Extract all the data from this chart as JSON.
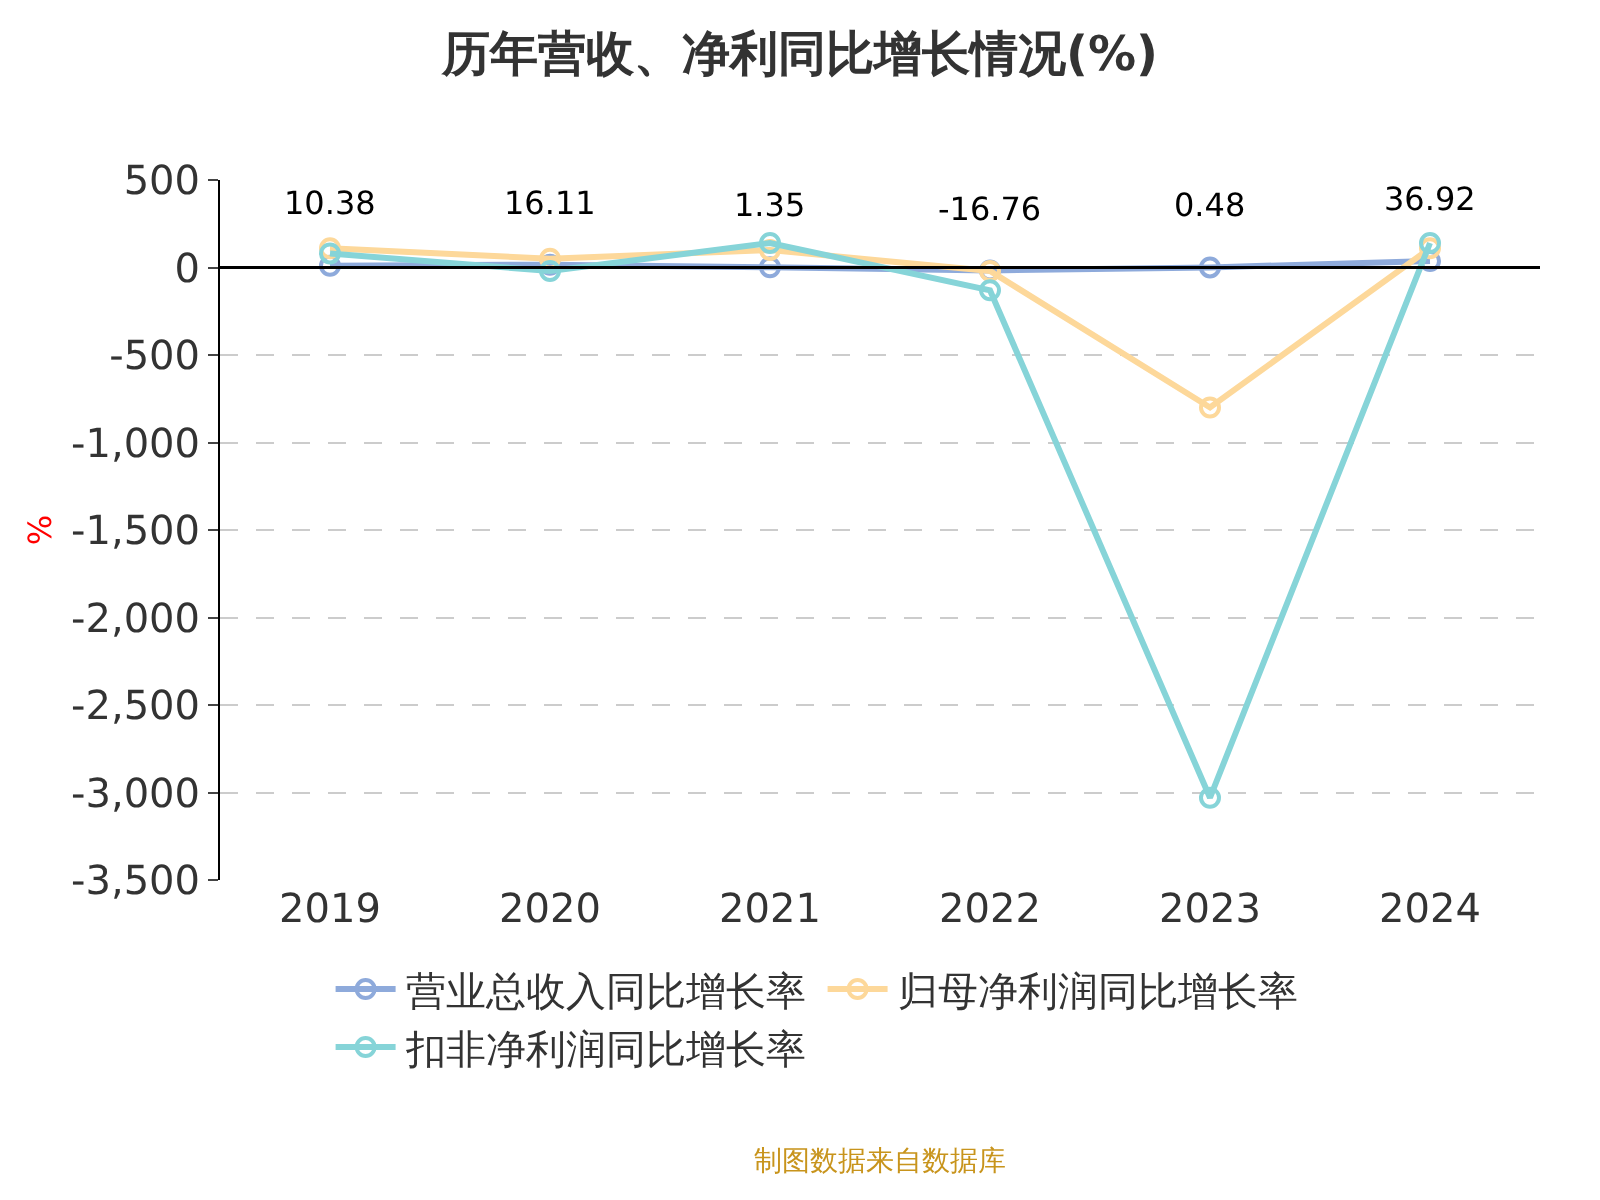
{
  "chart_data": {
    "type": "line",
    "title": "历年营收、净利同比增长情况(%)",
    "ylabel": "%",
    "categories": [
      "2019",
      "2020",
      "2021",
      "2022",
      "2023",
      "2024"
    ],
    "series": [
      {
        "name": "营业总收入同比增长率",
        "color": "#8eaadb",
        "values": [
          10.38,
          16.11,
          1.35,
          -16.76,
          0.48,
          36.92
        ],
        "value_labels": [
          "10.38",
          "16.11",
          "1.35",
          "-16.76",
          "0.48",
          "36.92"
        ]
      },
      {
        "name": "归母净利润同比增长率",
        "color": "#fdd89a",
        "values": [
          110,
          50,
          100,
          -20,
          -800,
          110
        ]
      },
      {
        "name": "扣非净利润同比增长率",
        "color": "#86d4d8",
        "values": [
          80,
          -20,
          140,
          -130,
          -3030,
          140
        ]
      }
    ],
    "ylim": [
      -3500,
      500
    ],
    "yticks": [
      {
        "value": 500,
        "label": "500"
      },
      {
        "value": 0,
        "label": "0"
      },
      {
        "value": -500,
        "label": "-500"
      },
      {
        "value": -1000,
        "label": "-1,000"
      },
      {
        "value": -1500,
        "label": "-1,500"
      },
      {
        "value": -2000,
        "label": "-2,000"
      },
      {
        "value": -2500,
        "label": "-2,500"
      },
      {
        "value": -3000,
        "label": "-3,000"
      },
      {
        "value": -3500,
        "label": "-3,500"
      }
    ],
    "grid": "y",
    "legend": "bottom",
    "marker": "circle",
    "line_style": "solid",
    "annotations": [
      "制图数据来自数据库"
    ]
  }
}
